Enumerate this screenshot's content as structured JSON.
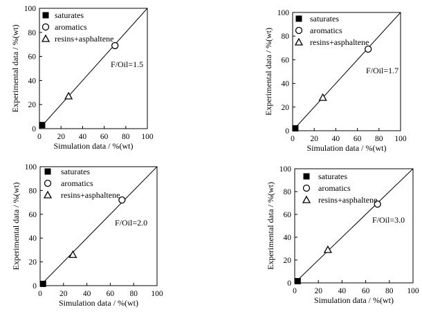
{
  "chart_data": [
    {
      "type": "scatter",
      "xlabel": "Simulation data / %(wt)",
      "ylabel": "Experimental data / %(wt)",
      "xlim": [
        0,
        100
      ],
      "ylim": [
        0,
        100
      ],
      "xticks": [
        0,
        20,
        40,
        60,
        80,
        100
      ],
      "yticks": [
        0,
        20,
        40,
        60,
        80,
        100
      ],
      "annotation": "F/Oil=1.5",
      "legend_position": "top-left",
      "series": [
        {
          "name": "saturates",
          "marker": "filled-square",
          "points": [
            {
              "x": 2.5,
              "y": 3
            }
          ]
        },
        {
          "name": "aromatics",
          "marker": "open-circle",
          "points": [
            {
              "x": 70,
              "y": 69
            }
          ]
        },
        {
          "name": "resins+asphaltene",
          "marker": "open-triangle",
          "points": [
            {
              "x": 27,
              "y": 27
            }
          ]
        }
      ],
      "reference_line": {
        "from": [
          0,
          0
        ],
        "to": [
          100,
          100
        ]
      }
    },
    {
      "type": "scatter",
      "xlabel": "Simulation data / %(wt)",
      "ylabel": "Experimental data / %(wt)",
      "xlim": [
        0,
        100
      ],
      "ylim": [
        0,
        100
      ],
      "xticks": [
        0,
        20,
        40,
        60,
        80,
        100
      ],
      "yticks": [
        0,
        20,
        40,
        60,
        80,
        100
      ],
      "annotation": "F/Oil=1.7",
      "legend_position": "top-left",
      "series": [
        {
          "name": "saturates",
          "marker": "filled-square",
          "points": [
            {
              "x": 2.5,
              "y": 2
            }
          ]
        },
        {
          "name": "aromatics",
          "marker": "open-circle",
          "points": [
            {
              "x": 70,
              "y": 69
            }
          ]
        },
        {
          "name": "resins+asphaltene",
          "marker": "open-triangle",
          "points": [
            {
              "x": 28,
              "y": 28
            }
          ]
        }
      ],
      "reference_line": {
        "from": [
          0,
          0
        ],
        "to": [
          100,
          100
        ]
      }
    },
    {
      "type": "scatter",
      "xlabel": "Simulation data / %(wt)",
      "ylabel": "Experimental data / %(wt)",
      "xlim": [
        0,
        100
      ],
      "ylim": [
        0,
        100
      ],
      "xticks": [
        0,
        20,
        40,
        60,
        80,
        100
      ],
      "yticks": [
        0,
        20,
        40,
        60,
        80,
        100
      ],
      "annotation": "F/Oil=2.0",
      "legend_position": "top-left",
      "series": [
        {
          "name": "saturates",
          "marker": "filled-square",
          "points": [
            {
              "x": 2.5,
              "y": 1.5
            }
          ]
        },
        {
          "name": "aromatics",
          "marker": "open-circle",
          "points": [
            {
              "x": 70,
              "y": 72
            }
          ]
        },
        {
          "name": "resins+asphaltene",
          "marker": "open-triangle",
          "points": [
            {
              "x": 28,
              "y": 26
            }
          ]
        }
      ],
      "reference_line": {
        "from": [
          0,
          0
        ],
        "to": [
          100,
          100
        ]
      }
    },
    {
      "type": "scatter",
      "xlabel": "Simulation data /  %(wt)",
      "ylabel": "Experimental data / %(wt)",
      "xlim": [
        0,
        100
      ],
      "ylim": [
        0,
        100
      ],
      "xticks": [
        0,
        20,
        40,
        60,
        80,
        100
      ],
      "yticks": [
        0,
        20,
        40,
        60,
        80,
        100
      ],
      "annotation": "F/Oil=3.0",
      "legend_position": "top-left",
      "series": [
        {
          "name": "saturates",
          "marker": "filled-square",
          "points": [
            {
              "x": 2.5,
              "y": 1.5
            }
          ]
        },
        {
          "name": "aromatics",
          "marker": "open-circle",
          "points": [
            {
              "x": 70,
              "y": 69
            }
          ]
        },
        {
          "name": "resins+asphaltene",
          "marker": "open-triangle",
          "points": [
            {
              "x": 28,
              "y": 29
            }
          ]
        }
      ],
      "reference_line": {
        "from": [
          0,
          0
        ],
        "to": [
          100,
          100
        ]
      }
    }
  ]
}
